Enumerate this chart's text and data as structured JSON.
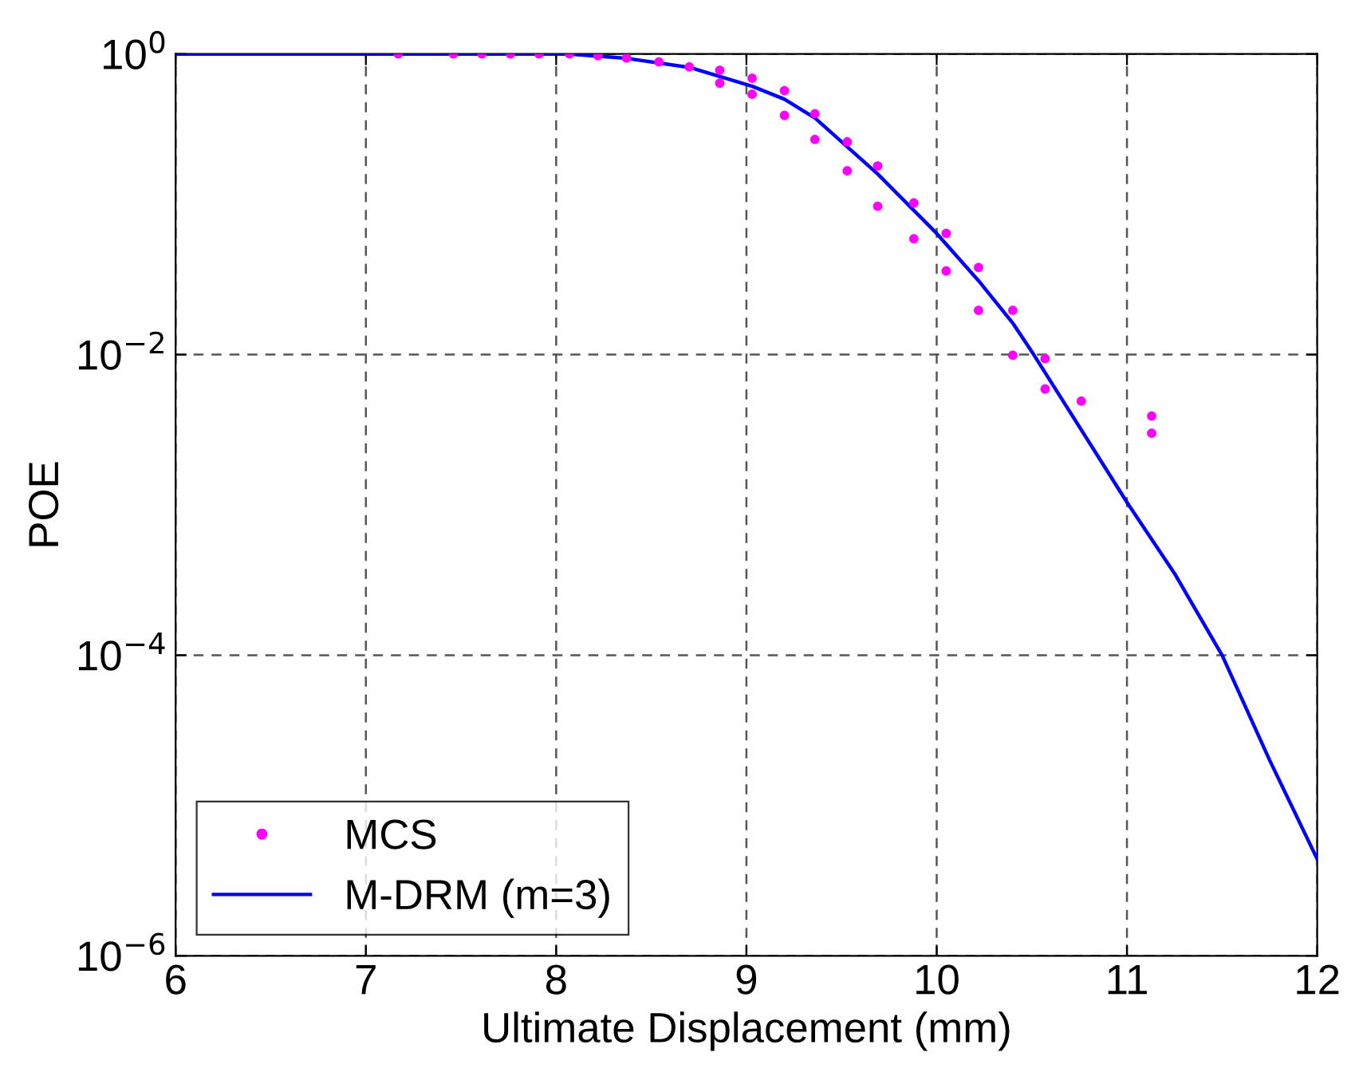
{
  "chart_data": {
    "type": "scatter",
    "xlabel": "Ultimate Displacement (mm)",
    "ylabel": "POE",
    "log": "y",
    "xlim": [
      6,
      12
    ],
    "xticks": [
      6,
      7,
      8,
      9,
      10,
      11,
      12
    ],
    "ylim": [
      1e-06,
      1
    ],
    "yticks": [
      {
        "value": 1e-06,
        "label": "10$^{−6}$"
      },
      {
        "value": 0.0001,
        "label": "10$^{−4}$"
      },
      {
        "value": 0.01,
        "label": "10$^{−2}$"
      },
      {
        "value": 1,
        "label": "10$^{0}$"
      }
    ],
    "grid": true,
    "legend": "bottom left",
    "series": [
      {
        "name": "MCS",
        "color": "#ff00ff",
        "marker": "circle",
        "x": [
          7.17,
          7.46,
          7.61,
          7.76,
          7.91,
          8.07,
          8.22,
          8.37,
          8.54,
          8.7,
          8.86,
          8.86,
          9.03,
          9.03,
          9.2,
          9.2,
          9.36,
          9.36,
          9.53,
          9.53,
          9.69,
          9.69,
          9.88,
          9.88,
          10.05,
          10.05,
          10.22,
          10.22,
          10.4,
          10.4,
          10.57,
          10.57,
          10.76,
          11.13,
          11.13
        ],
        "values": [
          1,
          1,
          1,
          1,
          1,
          1,
          0.975,
          0.94,
          0.885,
          0.82,
          0.78,
          0.64,
          0.69,
          0.54,
          0.57,
          0.39,
          0.4,
          0.27,
          0.26,
          0.167,
          0.18,
          0.097,
          0.102,
          0.059,
          0.064,
          0.036,
          0.038,
          0.0197,
          0.0197,
          0.0099,
          0.0094,
          0.0059,
          0.0049,
          0.0039,
          0.003
        ]
      },
      {
        "name": "M-DRM (m=3)",
        "type": "line",
        "color": "#0000ff",
        "marker": "none",
        "line_style": "solid",
        "x": [
          6,
          7,
          8,
          8.07,
          8.37,
          8.7,
          9.03,
          9.2,
          9.36,
          9.69,
          10.0,
          10.22,
          10.4,
          10.51,
          10.87,
          11.0,
          11.25,
          11.5,
          11.75,
          12
        ],
        "values": [
          1,
          1,
          1,
          1,
          0.936,
          0.815,
          0.61,
          0.5,
          0.375,
          0.159,
          0.064,
          0.031,
          0.0162,
          0.01,
          0.0019,
          0.00104,
          0.00035,
          0.0001,
          2e-05,
          4.4e-06
        ]
      }
    ]
  }
}
